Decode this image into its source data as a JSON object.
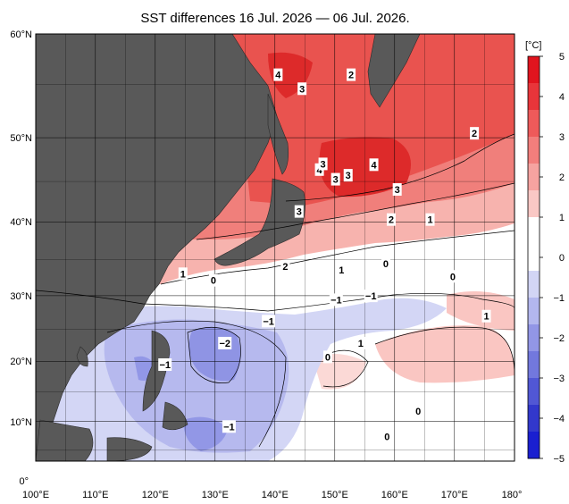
{
  "title": "SST differences 16 Jul. 2026 — 06 Jul. 2026.",
  "colorbar": {
    "unit": "[°C]",
    "ticks": [
      "5",
      "4",
      "3",
      "2",
      "1",
      "0",
      "−1",
      "−2",
      "−3",
      "−4",
      "−5"
    ],
    "colors": [
      "#e0141e",
      "#e8353a",
      "#ee5a5a",
      "#f27e7c",
      "#f6a3a0",
      "#fac8c5",
      "#ffffff",
      "#ffffff",
      "#d2d5f5",
      "#b3b7ee",
      "#9296e6",
      "#7278dd",
      "#5157d4",
      "#3238cc",
      "#1a1fd0"
    ]
  },
  "axes": {
    "lon_labels": [
      "100°E",
      "110°E",
      "120°E",
      "130°E",
      "140°E",
      "150°E",
      "160°E",
      "170°E",
      "180°"
    ],
    "lat_labels": [
      "60°N",
      "50°N",
      "40°N",
      "30°N",
      "20°N",
      "10°N",
      "0°"
    ]
  },
  "contour_labels": [
    {
      "text": "4",
      "lon": 140.5,
      "lat": 56.2
    },
    {
      "text": "2",
      "lon": 152.7,
      "lat": 56.2
    },
    {
      "text": "3",
      "lon": 144.5,
      "lat": 54.8
    },
    {
      "text": "2",
      "lon": 173.3,
      "lat": 50.0
    },
    {
      "text": "4",
      "lon": 147.4,
      "lat": 45.7
    },
    {
      "text": "3",
      "lon": 148.0,
      "lat": 46.4
    },
    {
      "text": "4",
      "lon": 156.5,
      "lat": 46.3
    },
    {
      "text": "3",
      "lon": 150.1,
      "lat": 44.5
    },
    {
      "text": "3",
      "lon": 152.2,
      "lat": 45.0
    },
    {
      "text": "3",
      "lon": 160.4,
      "lat": 43.2
    },
    {
      "text": "3",
      "lon": 144.0,
      "lat": 40.3
    },
    {
      "text": "2",
      "lon": 159.4,
      "lat": 39.2
    },
    {
      "text": "1",
      "lon": 165.9,
      "lat": 39.2
    },
    {
      "text": "2",
      "lon": 141.7,
      "lat": 32.5
    },
    {
      "text": "0",
      "lon": 158.5,
      "lat": 32.9
    },
    {
      "text": "1",
      "lon": 124.6,
      "lat": 31.4
    },
    {
      "text": "1",
      "lon": 151.1,
      "lat": 32.0
    },
    {
      "text": "0",
      "lon": 129.7,
      "lat": 30.4
    },
    {
      "text": "0",
      "lon": 169.7,
      "lat": 31.0
    },
    {
      "text": "−1",
      "lon": 150.2,
      "lat": 27.4
    },
    {
      "text": "−1",
      "lon": 156.0,
      "lat": 28.0
    },
    {
      "text": "−1",
      "lon": 138.9,
      "lat": 24.0
    },
    {
      "text": "1",
      "lon": 175.3,
      "lat": 24.8
    },
    {
      "text": "−2",
      "lon": 131.6,
      "lat": 20.4
    },
    {
      "text": "1",
      "lon": 154.3,
      "lat": 20.4
    },
    {
      "text": "0",
      "lon": 148.8,
      "lat": 18.1
    },
    {
      "text": "−1",
      "lon": 121.6,
      "lat": 16.8
    },
    {
      "text": "0",
      "lon": 163.9,
      "lat": 8.8
    },
    {
      "text": "−1",
      "lon": 132.3,
      "lat": 6.1
    },
    {
      "text": "0",
      "lon": 158.7,
      "lat": 4.3
    }
  ]
}
